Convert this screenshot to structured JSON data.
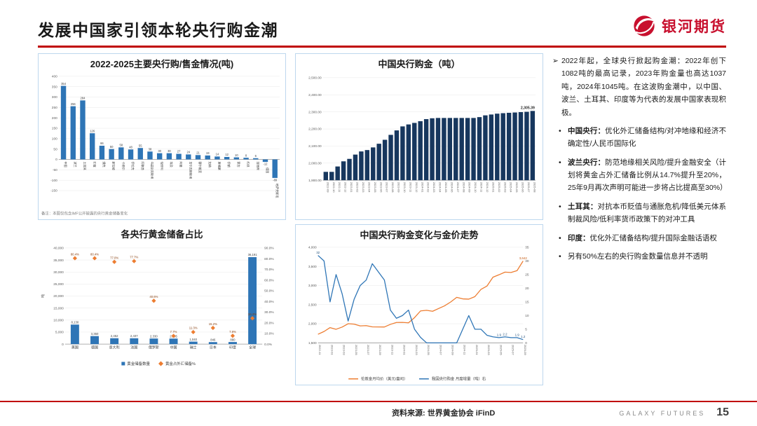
{
  "header": {
    "title": "发展中国家引领本轮央行购金潮",
    "brand": "银河期货"
  },
  "right_panel": {
    "bullets": [
      {
        "marker": "➢",
        "lead": "",
        "text": "2022年起，全球央行掀起购金潮：2022年创下1082吨的最高记录，2023年购金量也高达1037吨，2024年1045吨。在这波购金潮中，以中国、波兰、土耳其、印度等为代表的发展中国家表现积极。"
      },
      {
        "marker": "•",
        "lead": "中国央行：",
        "text": "优化外汇储备结构/对冲地缘和经济不确定性/人民币国际化"
      },
      {
        "marker": "•",
        "lead": "波兰央行：",
        "text": "防范地缘相关风险/提升金融安全（计划将黄金占外汇储备比例从14.7%提升至20%，25年9月再次声明可能进一步将占比提高至30%）"
      },
      {
        "marker": "•",
        "lead": "土耳其：",
        "text": "对抗本币贬值与通胀危机/降低美元体系制裁风险/低利率货币政策下的对冲工具"
      },
      {
        "marker": "•",
        "lead": "印度：",
        "text": "优化外汇储备结构/提升国际金融话语权"
      },
      {
        "marker": "•",
        "lead": "",
        "text": "另有50%左右的央行购金数量信息并不透明"
      }
    ]
  },
  "footer": {
    "source": "资料来源: 世界黄金协会  iFinD",
    "brand": "GALAXY FUTURES",
    "page": "15"
  },
  "colors": {
    "accent_red": "#C00000",
    "bar_blue": "#2E75B6",
    "bar_navy": "#17375E",
    "orange": "#ED7D31"
  },
  "chart_data": [
    {
      "type": "bar",
      "title": "2022-2025主要央行购/售金情况(吨)",
      "categories": [
        "中国",
        "波兰",
        "土耳其",
        "印度",
        "捷克",
        "新加坡",
        "卡塔尔",
        "伊拉克",
        "阿联酋",
        "乌兹别克斯坦",
        "匈牙利",
        "埃及",
        "阿曼",
        "吉尔吉斯斯坦",
        "塞尔维亚",
        "加纳",
        "柬埔寨",
        "伊朗",
        "蒙古",
        "约旦",
        "菲律宾",
        "德国",
        "哈萨克斯坦"
      ],
      "values": [
        354,
        256,
        284,
        126,
        66,
        50,
        58,
        48,
        55,
        38,
        30,
        30,
        27,
        24,
        21,
        19,
        14,
        12,
        10,
        8,
        6,
        -12,
        -89
      ],
      "ylim": [
        -150,
        400
      ],
      "ytick_step": 50,
      "note": "备注：本图仅包含IMF公开披露的央行黄金储备变化",
      "bar_color": "#2E75B6"
    },
    {
      "type": "bar",
      "title": "中国央行购金（吨）",
      "x": [
        "2022-09",
        "2022-10",
        "2022-11",
        "2022-12",
        "2023-01",
        "2023-02",
        "2023-03",
        "2023-04",
        "2023-05",
        "2023-06",
        "2023-07",
        "2023-08",
        "2023-09",
        "2023-10",
        "2023-11",
        "2023-12",
        "2024-01",
        "2024-02",
        "2024-03",
        "2024-04",
        "2024-05",
        "2024-06",
        "2024-07",
        "2024-08",
        "2024-09",
        "2024-10",
        "2024-11",
        "2024-12",
        "2025-01",
        "2025-02",
        "2025-03",
        "2025-04",
        "2025-05",
        "2025-06",
        "2025-07",
        "2025-08"
      ],
      "values": [
        1948.88,
        1948.88,
        1980.34,
        2010.51,
        2024.89,
        2049.97,
        2068.36,
        2076.47,
        2091.99,
        2113.46,
        2136.52,
        2165.43,
        2191.53,
        2214.97,
        2226.39,
        2235.39,
        2245.34,
        2257.47,
        2262.45,
        2264.33,
        2264.33,
        2264.33,
        2264.33,
        2264.33,
        2264.33,
        2264.33,
        2269.32,
        2279.57,
        2284.55,
        2289.53,
        2292.31,
        2294.53,
        2296.37,
        2298.55,
        2300.41,
        2305.39
      ],
      "ylim": [
        1900,
        2500
      ],
      "ytick_step": 100,
      "end_label": "2,305.39",
      "bar_color": "#17375E"
    },
    {
      "type": "combo-bar-scatter",
      "title": "各央行黄金储备占比",
      "categories": [
        "美国",
        "德国",
        "意大利",
        "法国",
        "俄罗斯",
        "中国",
        "瑞士",
        "日本",
        "印度",
        "全球"
      ],
      "bar_values": [
        8130,
        3350,
        2452,
        2437,
        2330,
        2305,
        1040,
        846,
        880,
        36191
      ],
      "bar_labels": [
        "8,130",
        "3,350",
        "2,452",
        "2,437",
        "2,330",
        "2,305",
        "1,040",
        "846",
        "880",
        "36,191"
      ],
      "pct_values": [
        80.4,
        80.4,
        77.0,
        77.7,
        40.6,
        7.7,
        11.3,
        15.2,
        7.8,
        24.2
      ],
      "pct_labels": [
        "80.4%",
        "80.4%",
        "77.0%",
        "77.7%",
        "40.6%",
        "7.7%",
        "11.3%",
        "15.2%",
        "7.8%",
        "24.2%"
      ],
      "ylim_left": [
        0,
        40000
      ],
      "ytick_left": 5000,
      "ylim_right": [
        0,
        90
      ],
      "ytick_right": 10,
      "ylabel": "吨",
      "legend": [
        "黄金储备数量",
        "黄金占外汇储备%"
      ],
      "bar_color": "#2E75B6",
      "marker_color": "#ED7D31"
    },
    {
      "type": "line",
      "title": "中国央行购金变化与金价走势",
      "x": [
        "2022-11",
        "2022-12",
        "2023-01",
        "2023-02",
        "2023-03",
        "2023-04",
        "2023-05",
        "2023-06",
        "2023-07",
        "2023-08",
        "2023-09",
        "2023-10",
        "2023-11",
        "2023-12",
        "2024-01",
        "2024-02",
        "2024-03",
        "2024-04",
        "2024-05",
        "2024-06",
        "2024-07",
        "2024-08",
        "2024-09",
        "2024-10",
        "2024-11",
        "2024-12",
        "2025-01",
        "2025-02",
        "2025-03",
        "2025-04",
        "2025-05",
        "2025-06",
        "2025-07",
        "2025-08",
        "2025-09"
      ],
      "series": [
        {
          "name": "伦敦金月均价（美元/盎司）",
          "axis": "left",
          "color": "#ED7D31",
          "values": [
            1725,
            1798,
            1898,
            1855,
            1913,
            2000,
            1990,
            1943,
            1951,
            1919,
            1916,
            1915,
            1984,
            2033,
            2034,
            2023,
            2160,
            2335,
            2351,
            2326,
            2398,
            2470,
            2568,
            2690,
            2651,
            2644,
            2708,
            2897,
            2983,
            3218,
            3280,
            3350,
            3340,
            3390,
            3642
          ]
        },
        {
          "name": "我国央行购金 月度增量（吨）右",
          "axis": "right",
          "color": "#2E75B6",
          "values": [
            32,
            30,
            15,
            25,
            18,
            8,
            16,
            21,
            23,
            29,
            26,
            23,
            12,
            9,
            10,
            12,
            5,
            2,
            0,
            0,
            0,
            0,
            0,
            0,
            5,
            10,
            5,
            5,
            2.8,
            2.2,
            1.9,
            2.2,
            1.9,
            1.9,
            1.2
          ]
        }
      ],
      "ylim_left": [
        1500,
        4000
      ],
      "ytick_left": 500,
      "ylim_right": [
        0,
        35
      ],
      "ytick_right": 5,
      "point_labels": [
        {
          "s": 1,
          "i": 0,
          "t": "32"
        },
        {
          "s": 1,
          "i": 30,
          "t": "1.9"
        },
        {
          "s": 1,
          "i": 31,
          "t": "2.2"
        },
        {
          "s": 1,
          "i": 33,
          "t": "1.9"
        },
        {
          "s": 1,
          "i": 34,
          "t": "1.2"
        },
        {
          "s": 0,
          "i": 34,
          "t": "3,642"
        }
      ]
    }
  ]
}
